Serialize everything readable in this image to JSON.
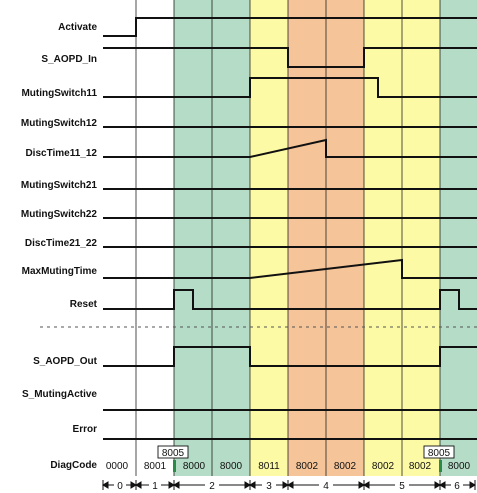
{
  "signals": [
    {
      "label": "Activate"
    },
    {
      "label": "S_AOPD_In"
    },
    {
      "label": "MutingSwitch11"
    },
    {
      "label": "MutingSwitch12"
    },
    {
      "label": "DiscTime11_12"
    },
    {
      "label": "MutingSwitch21"
    },
    {
      "label": "MutingSwitch22"
    },
    {
      "label": "DiscTime21_22"
    },
    {
      "label": "MaxMutingTime"
    },
    {
      "label": "Reset"
    },
    {
      "label": "S_AOPD_Out"
    },
    {
      "label": "S_MutingActive"
    },
    {
      "label": "Error"
    }
  ],
  "diag": {
    "label": "DiagCode",
    "codes": [
      "0000",
      "8001",
      "8000",
      "8000",
      "8011",
      "8002",
      "8002",
      "8002",
      "8002",
      "8000"
    ],
    "boxes": [
      "8005",
      "8005"
    ]
  },
  "phases": [
    "0",
    "1",
    "2",
    "3",
    "4",
    "5",
    "6"
  ],
  "colors": {
    "green": "#b5dcc6",
    "yellow": "#fdfaa5",
    "orange": "#f5c499"
  }
}
